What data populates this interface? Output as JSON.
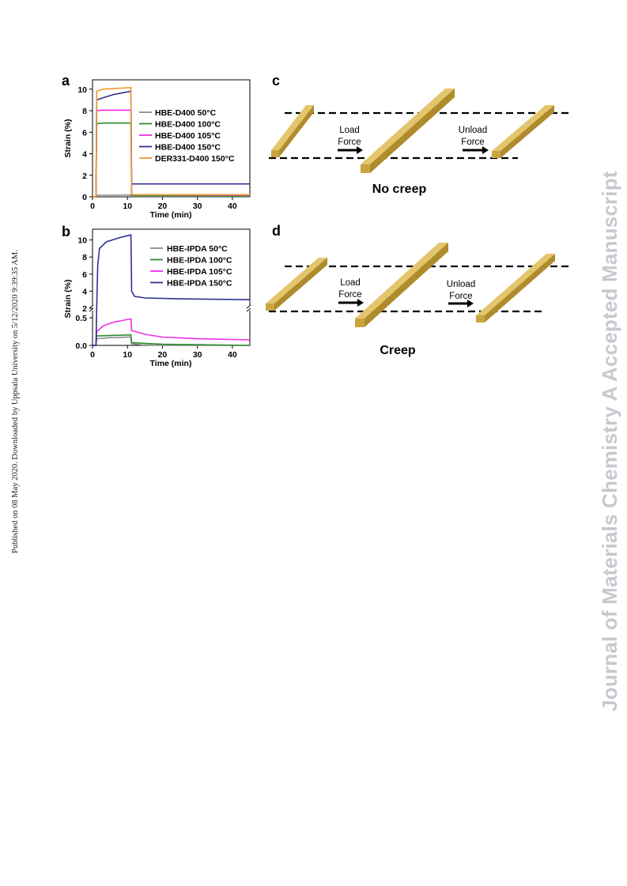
{
  "side_text_left": "Published on 08 May 2020. Downloaded by Uppsala University on 5/12/2020 9:39:35 AM.",
  "side_text_right": "Journal of Materials Chemistry A Accepted Manuscript",
  "panels": {
    "a": "a",
    "b": "b",
    "c": "c",
    "d": "d"
  },
  "diagram_c": {
    "load": [
      "Load",
      "Force"
    ],
    "unload": [
      "Unload",
      "Force"
    ],
    "caption": "No creep"
  },
  "diagram_d": {
    "load": [
      "Load",
      "Force"
    ],
    "unload": [
      "Unload",
      "Force"
    ],
    "caption": "Creep"
  },
  "colors": {
    "gray": "#8c8c8c",
    "green": "#2e8b2e",
    "magenta": "#ee2ee8",
    "blue": "#2d3192",
    "orange": "#f29a2e",
    "bar_top": "#e3c56c",
    "bar_front": "#c9a542",
    "bar_side": "#b08b2c"
  },
  "chart_data": [
    {
      "type": "line",
      "panel": "a",
      "xlabel": "Time (min)",
      "ylabel": "Strain (%)",
      "xlim": [
        0,
        45
      ],
      "ylim": [
        0,
        10.5
      ],
      "xticks": [
        0,
        10,
        20,
        30,
        40
      ],
      "yticks": [
        0,
        2,
        4,
        6,
        8,
        10
      ],
      "legend_position": "right",
      "series": [
        {
          "name": "HBE-D400 50°C",
          "color": "#8c8c8c",
          "x": [
            0,
            1,
            1.2,
            5,
            11,
            11.2,
            45
          ],
          "y": [
            0,
            0,
            0.15,
            0.15,
            0.17,
            0.05,
            0.05
          ]
        },
        {
          "name": "HBE-D400 100°C",
          "color": "#2e8b2e",
          "x": [
            0,
            1,
            1.2,
            3,
            11,
            11.2,
            45
          ],
          "y": [
            0,
            0,
            6.8,
            6.85,
            6.85,
            0.1,
            0.08
          ]
        },
        {
          "name": "HBE-D400 105°C",
          "color": "#ee2ee8",
          "x": [
            0,
            1,
            1.2,
            3,
            11,
            11.2,
            45
          ],
          "y": [
            0,
            0,
            8.0,
            8.05,
            8.05,
            0.2,
            0.15
          ]
        },
        {
          "name": "HBE-D400 150°C",
          "color": "#2d3192",
          "x": [
            0,
            1,
            1.2,
            3,
            6,
            11,
            11.2,
            45
          ],
          "y": [
            0,
            0,
            9.0,
            9.2,
            9.5,
            9.8,
            1.2,
            1.2
          ]
        },
        {
          "name": "DER331-D400 150°C",
          "color": "#f29a2e",
          "x": [
            0,
            1,
            1.2,
            3,
            11,
            11.2,
            45
          ],
          "y": [
            0,
            0,
            9.8,
            10.0,
            10.15,
            0.2,
            0.2
          ]
        }
      ]
    },
    {
      "type": "line",
      "panel": "b",
      "xlabel": "Time (min)",
      "ylabel": "Strain (%)",
      "xlim": [
        0,
        45
      ],
      "axis_break": true,
      "ylim_lower": [
        0,
        0.6
      ],
      "ylim_upper": [
        2,
        10.8
      ],
      "xticks": [
        0,
        10,
        20,
        30,
        40
      ],
      "yticks_lower": [
        0.0,
        0.5
      ],
      "yticks_upper": [
        2,
        4,
        6,
        8,
        10
      ],
      "legend_position": "right",
      "series": [
        {
          "name": "HBE-IPDA 50°C",
          "color": "#8c8c8c",
          "x": [
            0,
            1,
            1.2,
            5,
            11,
            11.2,
            14,
            20,
            45
          ],
          "y": [
            0,
            0,
            0.12,
            0.14,
            0.15,
            0.03,
            0.01,
            0.0,
            0.0
          ]
        },
        {
          "name": "HBE-IPDA 100°C",
          "color": "#2e8b2e",
          "x": [
            0,
            1,
            1.2,
            5,
            11,
            11.2,
            20,
            45
          ],
          "y": [
            0,
            0,
            0.17,
            0.18,
            0.19,
            0.05,
            0.02,
            0.0
          ]
        },
        {
          "name": "HBE-IPDA 105°C",
          "color": "#ee2ee8",
          "x": [
            0,
            1,
            1.2,
            3,
            6,
            11,
            11.2,
            15,
            20,
            30,
            45
          ],
          "y": [
            0,
            0,
            0.25,
            0.35,
            0.42,
            0.48,
            0.27,
            0.2,
            0.15,
            0.12,
            0.1
          ]
        },
        {
          "name": "HBE-IPDA 150°C",
          "color": "#2d3192",
          "x": [
            0,
            1,
            1.2,
            1.5,
            2,
            4,
            8,
            11,
            11.2,
            12,
            15,
            25,
            45
          ],
          "y": [
            0,
            0,
            2.0,
            7.0,
            9.0,
            9.8,
            10.3,
            10.6,
            4.0,
            3.4,
            3.2,
            3.1,
            3.0
          ]
        }
      ]
    }
  ]
}
